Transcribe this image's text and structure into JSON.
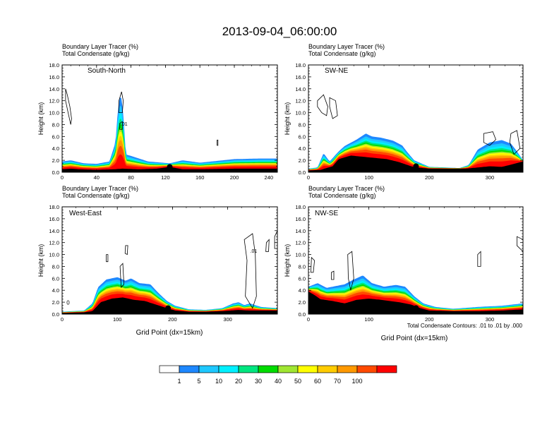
{
  "title": "2013-09-04_06:00:00",
  "panel_header": {
    "line1": "Boundary Layer Tracer   (%)",
    "line2": "Total Condensate   (g/kg)"
  },
  "ylabel": "Height (km)",
  "xlabel": "Grid Point (dx=15km)",
  "contour_note": "Total Condensate Contours: .01 to .01 by .000",
  "contour_label": ".01",
  "colors": {
    "white": "#ffffff",
    "blue": "#1e88ff",
    "lightblue": "#1ec8ff",
    "cyan": "#00f0ff",
    "springgreen": "#00e680",
    "green": "#00dc00",
    "yellowgreen": "#a0e632",
    "yellow": "#ffff00",
    "gold": "#ffcc00",
    "orange": "#ff9900",
    "redorange": "#ff4a00",
    "red": "#ff0000",
    "terrain": "#000000"
  },
  "colorbar": {
    "colors": [
      "#ffffff",
      "#1e88ff",
      "#1ec8ff",
      "#00f0ff",
      "#00e680",
      "#00dc00",
      "#a0e632",
      "#ffff00",
      "#ffcc00",
      "#ff9900",
      "#ff4a00",
      "#ff0000"
    ],
    "labels": [
      "1",
      "5",
      "10",
      "20",
      "30",
      "40",
      "50",
      "60",
      "70",
      "100"
    ]
  },
  "chart_data": [
    {
      "type": "heatmap",
      "name": "South-North",
      "xlim": [
        0,
        250
      ],
      "ylim": [
        0,
        18
      ],
      "xticks": [
        0,
        40,
        80,
        120,
        160,
        200,
        240
      ],
      "xtick_labels": [
        "0",
        "40",
        "80",
        "120",
        "160",
        "200",
        "240"
      ],
      "yticks": [
        0,
        2,
        4,
        6,
        8,
        10,
        12,
        14,
        16,
        18
      ],
      "ytick_labels": [
        "0.0",
        "2.0",
        "4.0",
        "6.0",
        "8.0",
        "10.0",
        "12.0",
        "14.0",
        "16.0",
        "18.0"
      ],
      "terrain": [
        [
          0,
          0.5
        ],
        [
          10,
          0.6
        ],
        [
          20,
          0.5
        ],
        [
          40,
          0.4
        ],
        [
          60,
          0.5
        ],
        [
          70,
          0.6
        ],
        [
          90,
          0.5
        ],
        [
          110,
          0.6
        ],
        [
          125,
          0.9
        ],
        [
          140,
          0.5
        ],
        [
          160,
          0.5
        ],
        [
          200,
          0.6
        ],
        [
          240,
          0.6
        ],
        [
          250,
          0.6
        ]
      ],
      "tracer_top": [
        [
          0,
          1.8
        ],
        [
          10,
          2.0
        ],
        [
          25,
          1.5
        ],
        [
          40,
          1.4
        ],
        [
          55,
          1.8
        ],
        [
          62,
          5
        ],
        [
          65,
          11
        ],
        [
          68,
          13.2
        ],
        [
          71,
          10
        ],
        [
          74,
          3
        ],
        [
          85,
          2.5
        ],
        [
          100,
          1.8
        ],
        [
          125,
          1.5
        ],
        [
          140,
          2.0
        ],
        [
          160,
          1.6
        ],
        [
          180,
          1.9
        ],
        [
          200,
          2.2
        ],
        [
          230,
          2.3
        ],
        [
          250,
          2.3
        ]
      ],
      "marker": {
        "x": 125,
        "y": 0.9
      },
      "contours": [
        [
          [
            4,
            14
          ],
          [
            6,
            13
          ],
          [
            9,
            11
          ],
          [
            11,
            9
          ],
          [
            10,
            8
          ],
          [
            7,
            10
          ],
          [
            4,
            12
          ]
        ],
        [
          [
            66,
            12
          ],
          [
            69,
            13.5
          ],
          [
            71,
            12
          ],
          [
            70,
            10
          ],
          [
            66,
            10
          ]
        ],
        [
          [
            67,
            8.2
          ],
          [
            70,
            8.5
          ],
          [
            70,
            7.2
          ],
          [
            67,
            7.2
          ]
        ],
        [
          [
            180,
            5.4
          ],
          [
            181,
            5.4
          ],
          [
            181,
            4.5
          ],
          [
            180,
            4.5
          ]
        ]
      ],
      "contour_label_at": {
        "x": 72,
        "y": 7.8
      }
    },
    {
      "type": "heatmap",
      "name": "SW-NE",
      "xlim": [
        0,
        355
      ],
      "ylim": [
        0,
        18
      ],
      "xticks": [
        0,
        100,
        200,
        300
      ],
      "xtick_labels": [
        "0",
        "100",
        "200",
        "300"
      ],
      "yticks": [
        0,
        2,
        4,
        6,
        8,
        10,
        12,
        14,
        16,
        18
      ],
      "ytick_labels": [
        "0.0",
        "2.0",
        "4.0",
        "6.0",
        "8.0",
        "10.0",
        "12.0",
        "14.0",
        "16.0",
        "18.0"
      ],
      "terrain": [
        [
          0,
          0.3
        ],
        [
          20,
          0.4
        ],
        [
          40,
          1.0
        ],
        [
          50,
          2.2
        ],
        [
          70,
          2.8
        ],
        [
          90,
          2.6
        ],
        [
          110,
          2.4
        ],
        [
          130,
          2.2
        ],
        [
          150,
          1.7
        ],
        [
          170,
          1.0
        ],
        [
          180,
          0.8
        ],
        [
          200,
          0.6
        ],
        [
          240,
          0.6
        ],
        [
          260,
          0.6
        ],
        [
          280,
          0.8
        ],
        [
          300,
          1.0
        ],
        [
          320,
          0.9
        ],
        [
          340,
          1.4
        ],
        [
          355,
          1.8
        ]
      ],
      "tracer_top": [
        [
          0,
          0.6
        ],
        [
          15,
          0.8
        ],
        [
          25,
          3.2
        ],
        [
          35,
          1.8
        ],
        [
          50,
          3.5
        ],
        [
          60,
          4.4
        ],
        [
          80,
          5.5
        ],
        [
          95,
          6.5
        ],
        [
          105,
          6.0
        ],
        [
          120,
          5.8
        ],
        [
          140,
          5.3
        ],
        [
          155,
          4.5
        ],
        [
          165,
          3.2
        ],
        [
          175,
          2.0
        ],
        [
          200,
          0.9
        ],
        [
          250,
          0.7
        ],
        [
          265,
          1.2
        ],
        [
          280,
          3.8
        ],
        [
          300,
          5.0
        ],
        [
          320,
          5.4
        ],
        [
          335,
          4.8
        ],
        [
          345,
          3.5
        ],
        [
          355,
          2.0
        ]
      ],
      "marker": {
        "x": 178,
        "y": 1.0
      },
      "contours": [
        [
          [
            15,
            12
          ],
          [
            25,
            13
          ],
          [
            32,
            11
          ],
          [
            30,
            9.5
          ],
          [
            22,
            10
          ],
          [
            15,
            11
          ]
        ],
        [
          [
            35,
            12.5
          ],
          [
            45,
            12
          ],
          [
            48,
            9.5
          ],
          [
            40,
            9
          ],
          [
            35,
            11
          ]
        ],
        [
          [
            290,
            6.5
          ],
          [
            305,
            6.8
          ],
          [
            310,
            5.5
          ],
          [
            300,
            4.5
          ],
          [
            290,
            5
          ]
        ],
        [
          [
            335,
            6.5
          ],
          [
            345,
            7
          ],
          [
            350,
            4
          ],
          [
            340,
            3
          ],
          [
            333,
            5
          ]
        ]
      ]
    },
    {
      "type": "heatmap",
      "name": "West-East",
      "xlim": [
        0,
        390
      ],
      "ylim": [
        0,
        18
      ],
      "xticks": [
        0,
        100,
        200,
        300
      ],
      "xtick_labels": [
        "0",
        "100",
        "200",
        "300"
      ],
      "yticks": [
        0,
        2,
        4,
        6,
        8,
        10,
        12,
        14,
        16,
        18
      ],
      "ytick_labels": [
        "0.0",
        "2.0",
        "4.0",
        "6.0",
        "8.0",
        "10.0",
        "12.0",
        "14.0",
        "16.0",
        "18.0"
      ],
      "terrain": [
        [
          0,
          0.2
        ],
        [
          40,
          0.3
        ],
        [
          55,
          0.5
        ],
        [
          70,
          2.0
        ],
        [
          90,
          2.6
        ],
        [
          110,
          2.8
        ],
        [
          130,
          2.4
        ],
        [
          150,
          2.2
        ],
        [
          170,
          1.6
        ],
        [
          190,
          1.0
        ],
        [
          205,
          0.6
        ],
        [
          230,
          0.4
        ],
        [
          260,
          0.4
        ],
        [
          290,
          0.5
        ],
        [
          320,
          0.7
        ],
        [
          340,
          0.6
        ],
        [
          360,
          0.6
        ],
        [
          390,
          0.6
        ]
      ],
      "tracer_top": [
        [
          0,
          0.4
        ],
        [
          40,
          0.6
        ],
        [
          55,
          1.8
        ],
        [
          65,
          4.5
        ],
        [
          80,
          5.8
        ],
        [
          100,
          6.2
        ],
        [
          115,
          5.6
        ],
        [
          125,
          6.0
        ],
        [
          140,
          5.2
        ],
        [
          160,
          5.0
        ],
        [
          175,
          3.5
        ],
        [
          190,
          2.2
        ],
        [
          205,
          1.4
        ],
        [
          230,
          0.8
        ],
        [
          260,
          0.7
        ],
        [
          290,
          1.0
        ],
        [
          310,
          1.8
        ],
        [
          320,
          2.0
        ],
        [
          330,
          1.5
        ],
        [
          340,
          1.8
        ],
        [
          360,
          1.2
        ],
        [
          390,
          1.0
        ]
      ],
      "marker": {
        "x": 192,
        "y": 1.0
      },
      "contours": [
        [
          [
            330,
            12.5
          ],
          [
            345,
            13.5
          ],
          [
            350,
            10
          ],
          [
            352,
            3
          ],
          [
            345,
            1
          ],
          [
            332,
            3
          ],
          [
            335,
            9
          ]
        ],
        [
          [
            370,
            12
          ],
          [
            375,
            12.5
          ],
          [
            374,
            10.5
          ],
          [
            369,
            10.5
          ]
        ],
        [
          [
            385,
            13
          ],
          [
            390,
            14
          ],
          [
            390,
            11
          ],
          [
            385,
            11
          ]
        ],
        [
          [
            105,
            8
          ],
          [
            110,
            8.5
          ],
          [
            112,
            5
          ],
          [
            107,
            4.5
          ]
        ],
        [
          [
            80,
            10
          ],
          [
            83,
            10
          ],
          [
            83,
            8.8
          ],
          [
            80,
            8.8
          ]
        ],
        [
          [
            115,
            11.5
          ],
          [
            119,
            11.5
          ],
          [
            118,
            10
          ],
          [
            114,
            10.2
          ]
        ]
      ],
      "contour_label_at": {
        "x": 347,
        "y": 10.3
      },
      "left_label": {
        "x": 8,
        "y": 1.6,
        "text": "0"
      }
    },
    {
      "type": "heatmap",
      "name": "NW-SE",
      "xlim": [
        0,
        355
      ],
      "ylim": [
        0,
        18
      ],
      "xticks": [
        0,
        100,
        200,
        300
      ],
      "xtick_labels": [
        "0",
        "100",
        "200",
        "300"
      ],
      "yticks": [
        0,
        2,
        4,
        6,
        8,
        10,
        12,
        14,
        16,
        18
      ],
      "ytick_labels": [
        "0.0",
        "2.0",
        "4.0",
        "6.0",
        "8.0",
        "10.0",
        "12.0",
        "14.0",
        "16.0",
        "18.0"
      ],
      "terrain": [
        [
          0,
          3.8
        ],
        [
          10,
          3.2
        ],
        [
          20,
          2.5
        ],
        [
          40,
          2.2
        ],
        [
          60,
          1.8
        ],
        [
          80,
          2.4
        ],
        [
          100,
          2.6
        ],
        [
          120,
          2.4
        ],
        [
          150,
          2.0
        ],
        [
          170,
          1.6
        ],
        [
          185,
          1.0
        ],
        [
          200,
          0.6
        ],
        [
          240,
          0.5
        ],
        [
          280,
          0.5
        ],
        [
          320,
          0.6
        ],
        [
          355,
          0.8
        ]
      ],
      "tracer_top": [
        [
          0,
          4.6
        ],
        [
          15,
          5.2
        ],
        [
          30,
          4.4
        ],
        [
          50,
          4.8
        ],
        [
          60,
          5.0
        ],
        [
          75,
          5.8
        ],
        [
          90,
          6.5
        ],
        [
          105,
          5.2
        ],
        [
          125,
          4.6
        ],
        [
          145,
          4.9
        ],
        [
          160,
          4.6
        ],
        [
          175,
          3.0
        ],
        [
          190,
          1.8
        ],
        [
          210,
          1.2
        ],
        [
          240,
          0.9
        ],
        [
          280,
          1.2
        ],
        [
          320,
          1.4
        ],
        [
          355,
          1.8
        ]
      ],
      "marker": {
        "x": 178,
        "y": 1.0
      },
      "contours": [
        [
          [
            5,
            9.5
          ],
          [
            10,
            9
          ],
          [
            8,
            7
          ],
          [
            4,
            7
          ]
        ],
        [
          [
            65,
            10
          ],
          [
            72,
            10.5
          ],
          [
            75,
            6
          ],
          [
            70,
            4
          ],
          [
            66,
            6
          ]
        ],
        [
          [
            280,
            10
          ],
          [
            285,
            10.5
          ],
          [
            285,
            8
          ],
          [
            280,
            8
          ]
        ],
        [
          [
            345,
            13
          ],
          [
            355,
            12.5
          ],
          [
            355,
            10.5
          ],
          [
            345,
            11.5
          ]
        ],
        [
          [
            38,
            7
          ],
          [
            42,
            7.2
          ],
          [
            42,
            5.8
          ],
          [
            38,
            5.8
          ]
        ]
      ]
    }
  ]
}
